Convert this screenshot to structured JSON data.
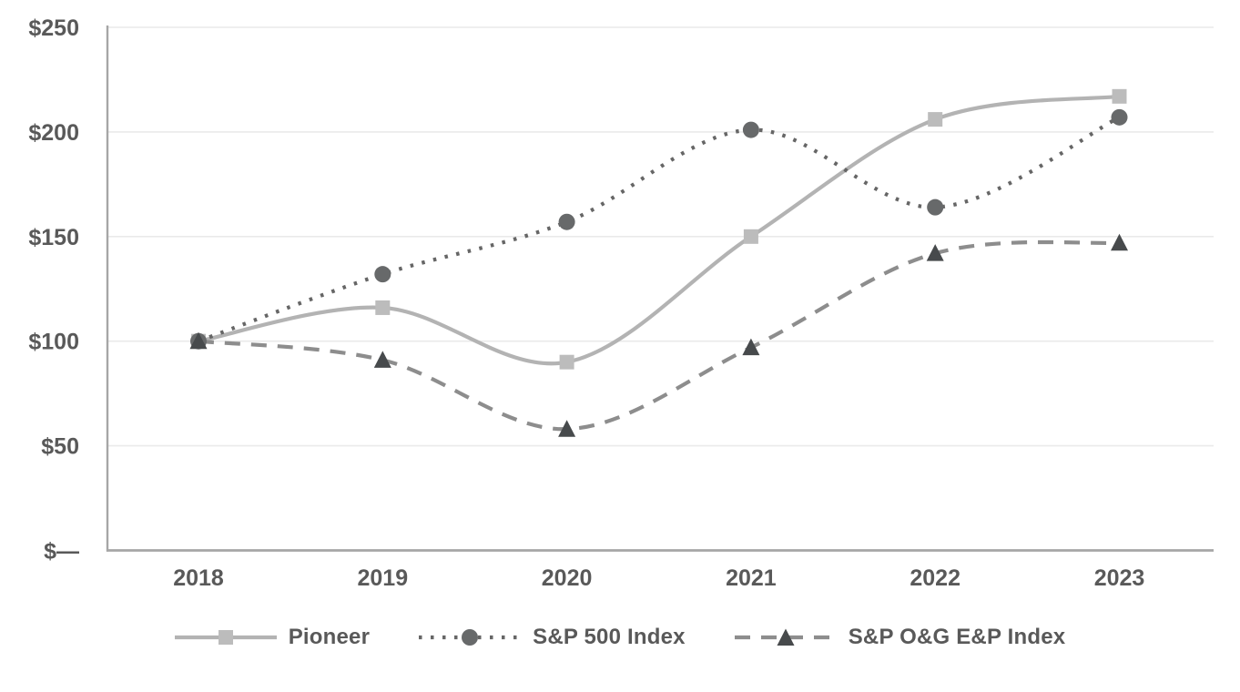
{
  "chart_data": {
    "type": "line",
    "title": "",
    "xlabel": "",
    "ylabel": "",
    "categories": [
      "2018",
      "2019",
      "2020",
      "2021",
      "2022",
      "2023"
    ],
    "series": [
      {
        "name": "Pioneer",
        "values": [
          100,
          116,
          90,
          150,
          206,
          217
        ],
        "line_style": "solid",
        "marker": "square",
        "line_color": "#b3b3b3",
        "marker_color": "#bcbcbc"
      },
      {
        "name": "S&P 500 Index",
        "values": [
          100,
          132,
          157,
          201,
          164,
          207
        ],
        "line_style": "dotted",
        "marker": "circle",
        "line_color": "#666666",
        "marker_color": "#67696a"
      },
      {
        "name": "S&P O&G E&P Index",
        "values": [
          100,
          91,
          58,
          97,
          142,
          147
        ],
        "line_style": "dashed",
        "marker": "triangle",
        "line_color": "#8d8d8d",
        "marker_color": "#474a4c"
      }
    ],
    "ylim": [
      0,
      250
    ],
    "y_ticks": [
      0,
      50,
      100,
      150,
      200,
      250
    ],
    "y_tick_labels": [
      "$—",
      "$50",
      "$100",
      "$150",
      "$200",
      "$250"
    ],
    "grid": true,
    "legend_position": "bottom"
  },
  "colors": {
    "background": "#ffffff",
    "grid_line": "#eaeaea",
    "axis_line": "#a6a6a6",
    "tick_label": "#595959"
  }
}
